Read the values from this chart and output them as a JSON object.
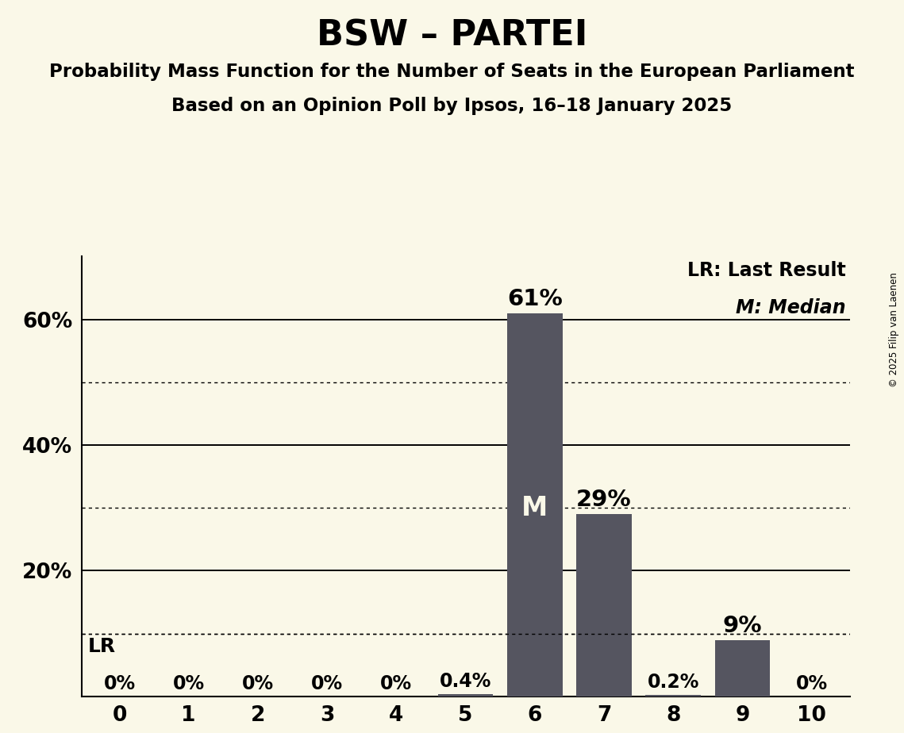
{
  "title": "BSW – PARTEI",
  "subtitle1": "Probability Mass Function for the Number of Seats in the European Parliament",
  "subtitle2": "Based on an Opinion Poll by Ipsos, 16–18 January 2025",
  "copyright": "© 2025 Filip van Laenen",
  "x_values": [
    0,
    1,
    2,
    3,
    4,
    5,
    6,
    7,
    8,
    9,
    10
  ],
  "y_values": [
    0.0,
    0.0,
    0.0,
    0.0,
    0.0,
    0.4,
    61.0,
    29.0,
    0.2,
    9.0,
    0.0
  ],
  "bar_color": "#555560",
  "background_color": "#faf8e8",
  "median_seat": 6,
  "lr_value": 10.0,
  "legend_lr": "LR: Last Result",
  "legend_m": "M: Median",
  "ytick_labels": [
    20,
    40,
    60
  ],
  "ytick_solid": [
    20,
    40,
    60
  ],
  "ytick_dotted": [
    10,
    30,
    50
  ],
  "ylim": [
    0,
    70
  ],
  "xlim": [
    -0.55,
    10.55
  ]
}
